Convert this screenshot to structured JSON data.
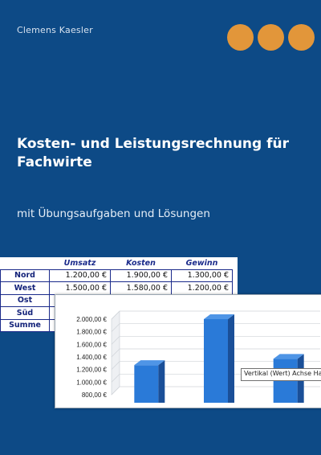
{
  "author": "Clemens Kaesler",
  "title": "Kosten- und Leistungsrechnung für Fachwirte",
  "subtitle": "mit Übungsaufgaben und Lösungen",
  "colors": {
    "background": "#0d4a86",
    "dots": "#e2963a",
    "bars": "#2a7ad8"
  },
  "table": {
    "headers": [
      "Umsatz",
      "Kosten",
      "Gewinn"
    ],
    "rows": [
      {
        "label": "Nord",
        "values": [
          "1.200,00 €",
          "1.900,00 €",
          "1.300,00 €"
        ]
      },
      {
        "label": "West",
        "values": [
          "1.500,00 €",
          "1.580,00 €",
          "1.200,00 €"
        ]
      },
      {
        "label": "Ost",
        "values": [
          "",
          "",
          ""
        ]
      },
      {
        "label": "Süd",
        "values": [
          "",
          "",
          ""
        ]
      },
      {
        "label": "Summe",
        "values": [
          "",
          "",
          ""
        ]
      }
    ]
  },
  "chart_data": {
    "type": "bar",
    "categories": [
      "",
      "",
      ""
    ],
    "values": [
      1270,
      2000,
      1370
    ],
    "ylim": [
      800,
      2000
    ],
    "ticks": [
      "2.000,00 €",
      "1.800,00 €",
      "1.600,00 €",
      "1.400,00 €",
      "1.200,00 €",
      "1.000,00 €",
      "800,00 €"
    ],
    "tick_values": [
      2000,
      1800,
      1600,
      1400,
      1200,
      1000,
      800
    ],
    "grid": true,
    "tooltip": "Vertikal (Wert) Achse Ha"
  }
}
